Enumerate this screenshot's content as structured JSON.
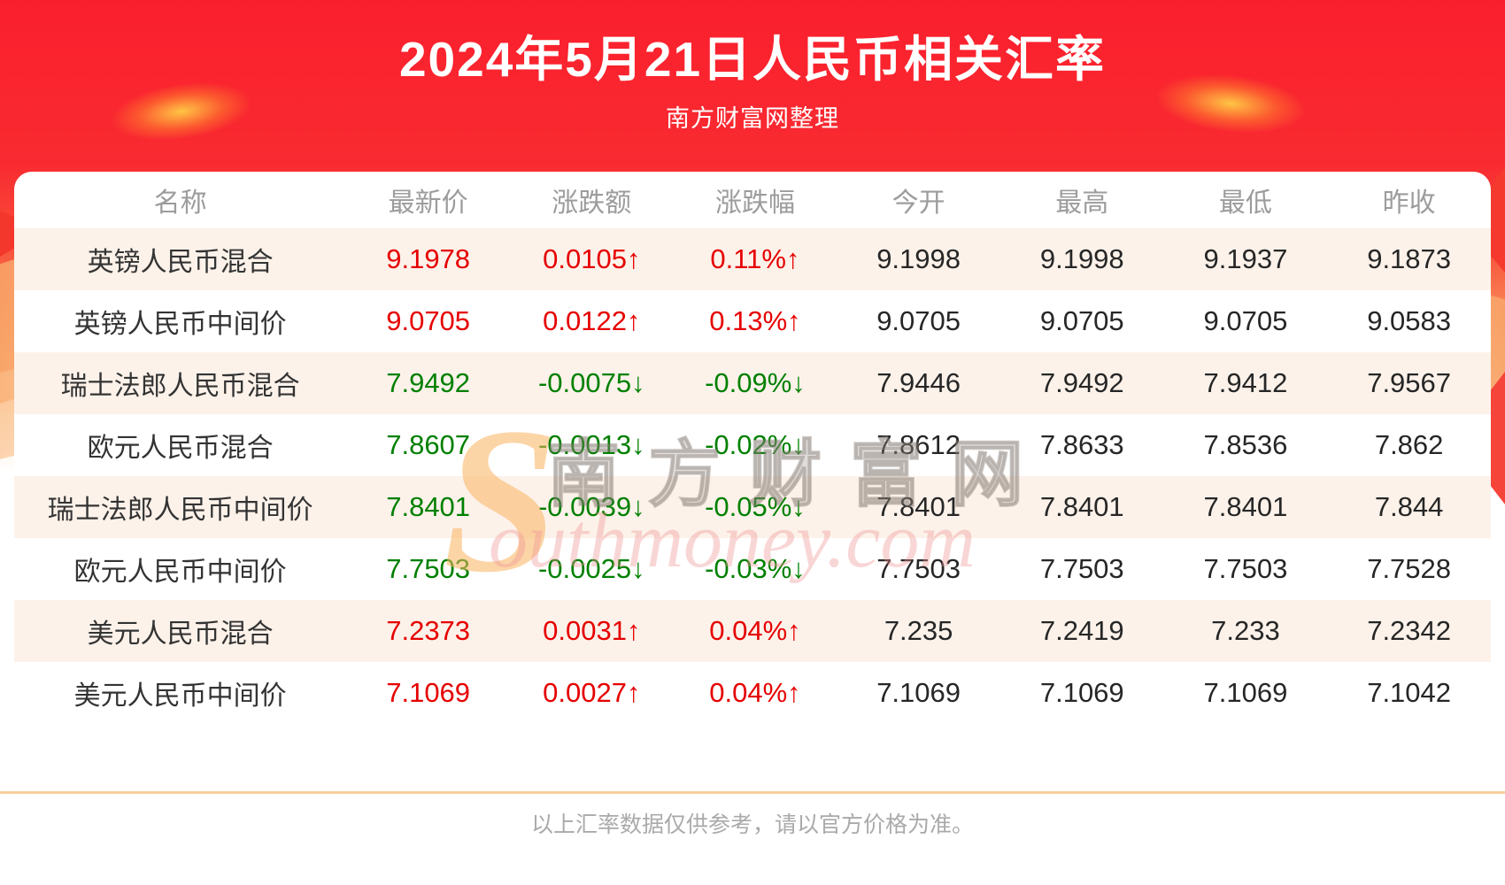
{
  "page": {
    "title": "2024年5月21日人民币相关汇率",
    "subtitle": "南方财富网整理",
    "footer_note": "以上汇率数据仅供参考，请以官方价格为准。"
  },
  "watermark": {
    "s": "S",
    "cn": "南方财富网",
    "en": "outhmoney.com"
  },
  "colors": {
    "up": "#e60000",
    "down": "#008000",
    "banner_red": "#fa1f2d",
    "alt_row_bg": "#fcf2ea",
    "divider": "#f8d09e",
    "header_text": "#9c9c9c"
  },
  "chart_data": {
    "type": "table",
    "title": "2024年5月21日人民币相关汇率",
    "columns": [
      "名称",
      "最新价",
      "涨跌额",
      "涨跌幅",
      "今开",
      "最高",
      "最低",
      "昨收"
    ],
    "rows": [
      {
        "cells": [
          "英镑人民币混合",
          "9.1978",
          "0.0105↑",
          "0.11%↑",
          "9.1998",
          "9.1998",
          "9.1937",
          "9.1873"
        ],
        "direction": "up"
      },
      {
        "cells": [
          "英镑人民币中间价",
          "9.0705",
          "0.0122↑",
          "0.13%↑",
          "9.0705",
          "9.0705",
          "9.0705",
          "9.0583"
        ],
        "direction": "up"
      },
      {
        "cells": [
          "瑞士法郎人民币混合",
          "7.9492",
          "-0.0075↓",
          "-0.09%↓",
          "7.9446",
          "7.9492",
          "7.9412",
          "7.9567"
        ],
        "direction": "down"
      },
      {
        "cells": [
          "欧元人民币混合",
          "7.8607",
          "-0.0013↓",
          "-0.02%↓",
          "7.8612",
          "7.8633",
          "7.8536",
          "7.862"
        ],
        "direction": "down"
      },
      {
        "cells": [
          "瑞士法郎人民币中间价",
          "7.8401",
          "-0.0039↓",
          "-0.05%↓",
          "7.8401",
          "7.8401",
          "7.8401",
          "7.844"
        ],
        "direction": "down"
      },
      {
        "cells": [
          "欧元人民币中间价",
          "7.7503",
          "-0.0025↓",
          "-0.03%↓",
          "7.7503",
          "7.7503",
          "7.7503",
          "7.7528"
        ],
        "direction": "down"
      },
      {
        "cells": [
          "美元人民币混合",
          "7.2373",
          "0.0031↑",
          "0.04%↑",
          "7.235",
          "7.2419",
          "7.233",
          "7.2342"
        ],
        "direction": "up"
      },
      {
        "cells": [
          "美元人民币中间价",
          "7.1069",
          "0.0027↑",
          "0.04%↑",
          "7.1069",
          "7.1069",
          "7.1069",
          "7.1042"
        ],
        "direction": "up"
      }
    ]
  }
}
